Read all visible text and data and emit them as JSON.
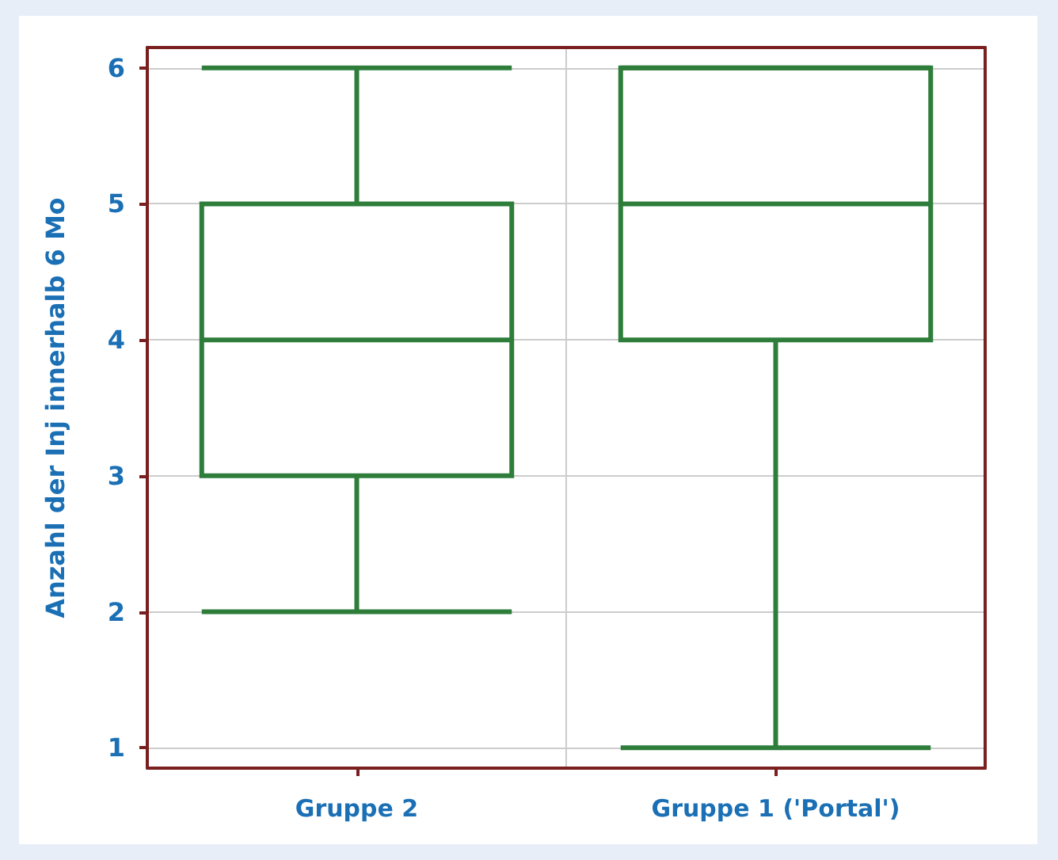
{
  "chart_data": {
    "type": "box",
    "ylabel": "Anzahl der Inj innerhalb 6 Mo",
    "categories": [
      "Gruppe 2",
      "Gruppe 1 ('Portal')"
    ],
    "series": [
      {
        "color": "#2e7d3a",
        "boxes": [
          {
            "low": 2,
            "q1": 3,
            "median": 4,
            "q3": 5,
            "high": 6
          },
          {
            "low": 1,
            "q1": 4,
            "median": 5,
            "q3": 6,
            "high": 6
          }
        ]
      }
    ],
    "ylim": [
      0.85,
      6.15
    ],
    "yticks": [
      1,
      2,
      3,
      4,
      5,
      6
    ],
    "grid": true
  }
}
